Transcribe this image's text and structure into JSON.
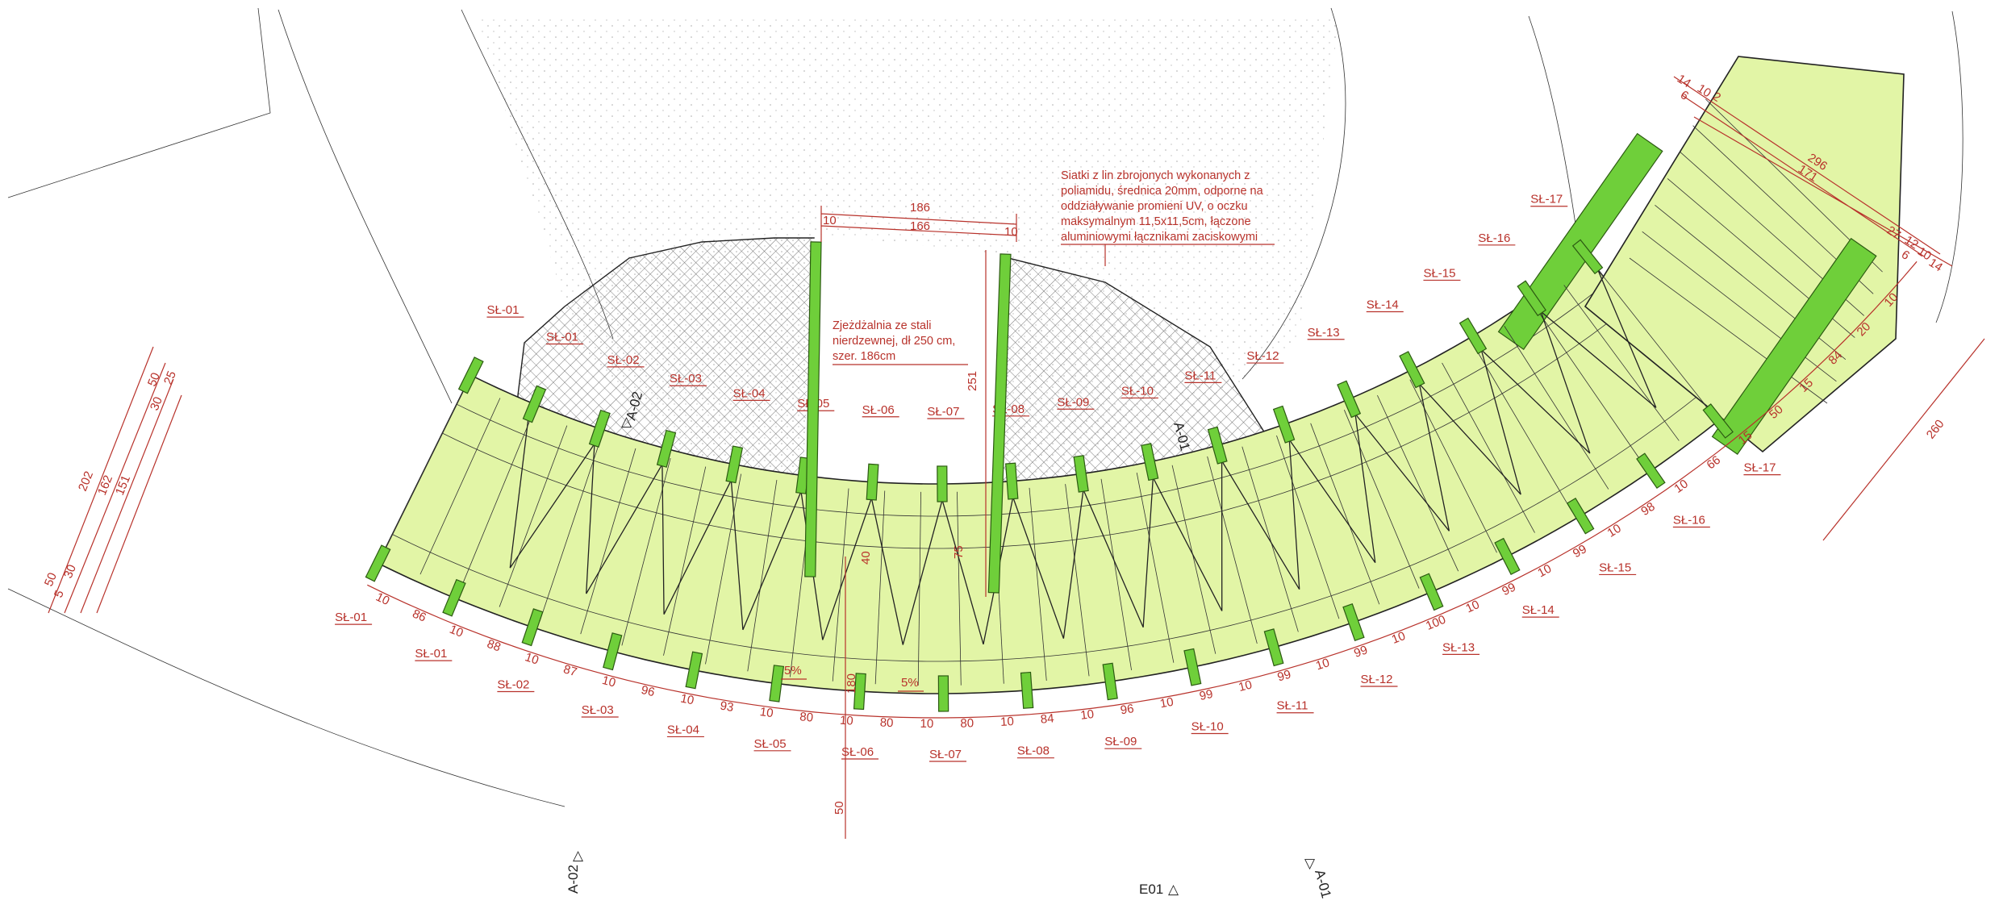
{
  "drawing": {
    "colors": {
      "deck": "#e2f5a6",
      "pile": "#6fcf3a",
      "annotation": "#b8322b",
      "line": "#222222"
    },
    "notes": {
      "net": [
        "Siatki z lin zbrojonych wykonanych z",
        "poliamidu, średnica 20mm, odporne na",
        "oddziaływanie promieni UV, o oczku",
        "maksymalnym 11,5x11,5cm, łączone",
        "aluminiowymi łącznikami zaciskowymi"
      ],
      "slide": [
        "Zjeżdżalnia ze stali",
        "nierdzewnej, dł 250 cm,",
        "szer. 186cm"
      ]
    },
    "sections": {
      "a01_top": "A-01",
      "a01_bottom": "A-01",
      "a02_top": "A-02",
      "a02_bottom": "A-02",
      "e01": "E01"
    },
    "slopes": [
      "5%",
      "5%"
    ],
    "inner_labels": [
      "SŁ-01",
      "SŁ-01",
      "SŁ-02",
      "SŁ-03",
      "SŁ-04",
      "SŁ-05",
      "SŁ-06",
      "SŁ-07",
      "SŁ-08",
      "SŁ-09",
      "SŁ-10",
      "SŁ-11",
      "SŁ-12",
      "SŁ-13",
      "SŁ-14",
      "SŁ-15",
      "SŁ-16",
      "SŁ-17"
    ],
    "outer_labels": [
      "SŁ-01",
      "SŁ-01",
      "SŁ-02",
      "SŁ-03",
      "SŁ-04",
      "SŁ-05",
      "SŁ-06",
      "SŁ-07",
      "SŁ-08",
      "SŁ-09",
      "SŁ-10",
      "SŁ-11",
      "SŁ-12",
      "SŁ-13",
      "SŁ-14",
      "SŁ-15",
      "SŁ-16",
      "SŁ-17"
    ],
    "outer_dims": [
      "10",
      "86",
      "10",
      "88",
      "10",
      "87",
      "10",
      "96",
      "10",
      "93",
      "10",
      "80",
      "10",
      "80",
      "10",
      "80",
      "10",
      "84",
      "10",
      "96",
      "10",
      "99",
      "10",
      "99",
      "10",
      "99",
      "10",
      "100",
      "10",
      "99",
      "10",
      "99",
      "10",
      "98",
      "10",
      "66",
      "15",
      "50",
      "15",
      "84",
      "20",
      "10"
    ],
    "right_total": "260",
    "left_dims": {
      "d202": "202",
      "d162": "162",
      "d151": "151",
      "d50a": "50",
      "d25": "25",
      "d30a": "30",
      "d50b": "50",
      "d30b": "30",
      "d5": "5"
    },
    "slide_dims": {
      "d186": "186",
      "d166": "166",
      "d10a": "10",
      "d10b": "10",
      "d251": "251",
      "d75": "75",
      "d40": "40",
      "d180": "180",
      "d50": "50"
    },
    "platform_dims": {
      "d296": "296",
      "d171": "171",
      "d14a": "14",
      "d14b": "14",
      "d10a": "10",
      "d10b": "10",
      "d2": "2",
      "d6": "6",
      "d27": "27",
      "d12": "12",
      "d6b": "6"
    }
  }
}
